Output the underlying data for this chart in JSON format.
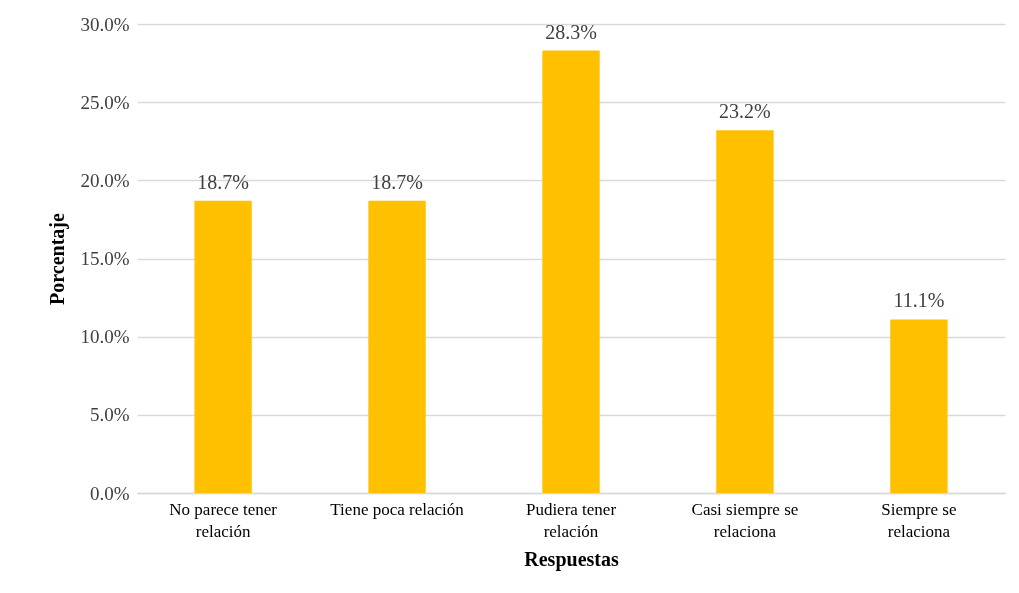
{
  "chart_data": {
    "type": "bar",
    "xlabel": "Respuestas",
    "ylabel": "Porcentaje",
    "categories": [
      "No parece tener relación",
      "Tiene poca relación",
      "Pudiera tener relación",
      "Casi siempre se relaciona",
      "Siempre se relaciona"
    ],
    "values": [
      18.7,
      18.7,
      28.3,
      23.2,
      11.1
    ],
    "value_labels": [
      "18.7%",
      "18.7%",
      "28.3%",
      "23.2%",
      "11.1%"
    ],
    "color": "#ffc000",
    "ylim": [
      0,
      30
    ],
    "yticks": [
      {
        "value": 0,
        "label": "0.0%"
      },
      {
        "value": 5,
        "label": "5.0%"
      },
      {
        "value": 10,
        "label": "10.0%"
      },
      {
        "value": 15,
        "label": "15.0%"
      },
      {
        "value": 20,
        "label": "20.0%"
      },
      {
        "value": 25,
        "label": "25.0%"
      },
      {
        "value": 30,
        "label": "30.0%"
      }
    ],
    "grid": "y"
  }
}
